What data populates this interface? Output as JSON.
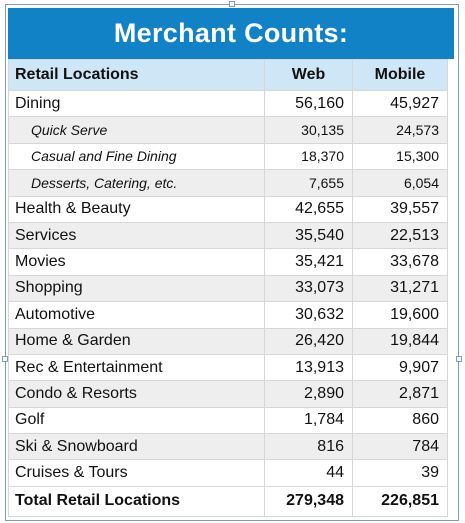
{
  "title": "Merchant Counts:",
  "columns": {
    "label": "Retail Locations",
    "web": "Web",
    "mobile": "Mobile"
  },
  "rows": [
    {
      "label": "Dining",
      "web": "56,160",
      "mobile": "45,927",
      "sub": false
    },
    {
      "label": "Quick Serve",
      "web": "30,135",
      "mobile": "24,573",
      "sub": true
    },
    {
      "label": "Casual and Fine Dining",
      "web": "18,370",
      "mobile": "15,300",
      "sub": true
    },
    {
      "label": "Desserts, Catering, etc.",
      "web": "7,655",
      "mobile": "6,054",
      "sub": true
    },
    {
      "label": "Health & Beauty",
      "web": "42,655",
      "mobile": "39,557",
      "sub": false
    },
    {
      "label": "Services",
      "web": "35,540",
      "mobile": "22,513",
      "sub": false
    },
    {
      "label": "Movies",
      "web": "35,421",
      "mobile": "33,678",
      "sub": false
    },
    {
      "label": "Shopping",
      "web": "33,073",
      "mobile": "31,271",
      "sub": false
    },
    {
      "label": "Automotive",
      "web": "30,632",
      "mobile": "19,600",
      "sub": false
    },
    {
      "label": "Home & Garden",
      "web": "26,420",
      "mobile": "19,844",
      "sub": false
    },
    {
      "label": "Rec & Entertainment",
      "web": "13,913",
      "mobile": "9,907",
      "sub": false
    },
    {
      "label": "Condo & Resorts",
      "web": "2,890",
      "mobile": "2,871",
      "sub": false
    },
    {
      "label": "Golf",
      "web": "1,784",
      "mobile": "860",
      "sub": false
    },
    {
      "label": "Ski & Snowboard",
      "web": "816",
      "mobile": "784",
      "sub": false
    },
    {
      "label": "Cruises & Tours",
      "web": "44",
      "mobile": "39",
      "sub": false
    }
  ],
  "total": {
    "label": "Total Retail Locations",
    "web": "279,348",
    "mobile": "226,851"
  }
}
